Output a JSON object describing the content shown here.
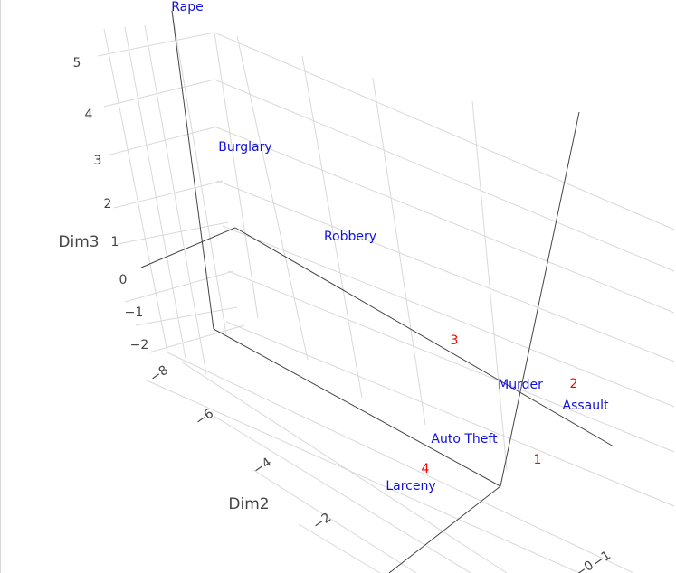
{
  "chart_data": {
    "type": "scatter3d",
    "axes": {
      "z": {
        "title": "Dim3",
        "ticks": [
          "5",
          "4",
          "3",
          "2",
          "1",
          "0",
          "−1",
          "−2"
        ]
      },
      "y": {
        "title": "Dim2",
        "ticks": [
          "−8",
          "−6",
          "−4",
          "−2"
        ]
      },
      "x": {
        "title": "",
        "ticks": [
          "−1",
          "−0"
        ]
      }
    },
    "variables": [
      {
        "label": "Rape",
        "dim2": -9.5,
        "dim3": 5.8
      },
      {
        "label": "Burglary",
        "dim2": -7.2,
        "dim3": 3.6
      },
      {
        "label": "Robbery",
        "dim2": -5.0,
        "dim3": 2.2
      },
      {
        "label": "Murder",
        "dim2": -1.8,
        "dim3": 0.1
      },
      {
        "label": "Assault",
        "dim2": -1.5,
        "dim3": -0.2
      },
      {
        "label": "Auto Theft",
        "dim2": -2.5,
        "dim3": -0.9
      },
      {
        "label": "Larceny",
        "dim2": -2.8,
        "dim3": -1.6
      }
    ],
    "observations": [
      {
        "label": "3",
        "dim2": -2.6,
        "dim3": 0.9
      },
      {
        "label": "2",
        "dim2": -1.3,
        "dim3": 0.2
      },
      {
        "label": "1",
        "dim2": -1.6,
        "dim3": -0.9
      },
      {
        "label": "4",
        "dim2": -3.0,
        "dim3": -1.4
      }
    ],
    "colors": {
      "variables": "#1010e0",
      "observations": "#ff0000",
      "grid": "#d9d9d9",
      "axis_lines": "#444444"
    },
    "grid": true
  }
}
